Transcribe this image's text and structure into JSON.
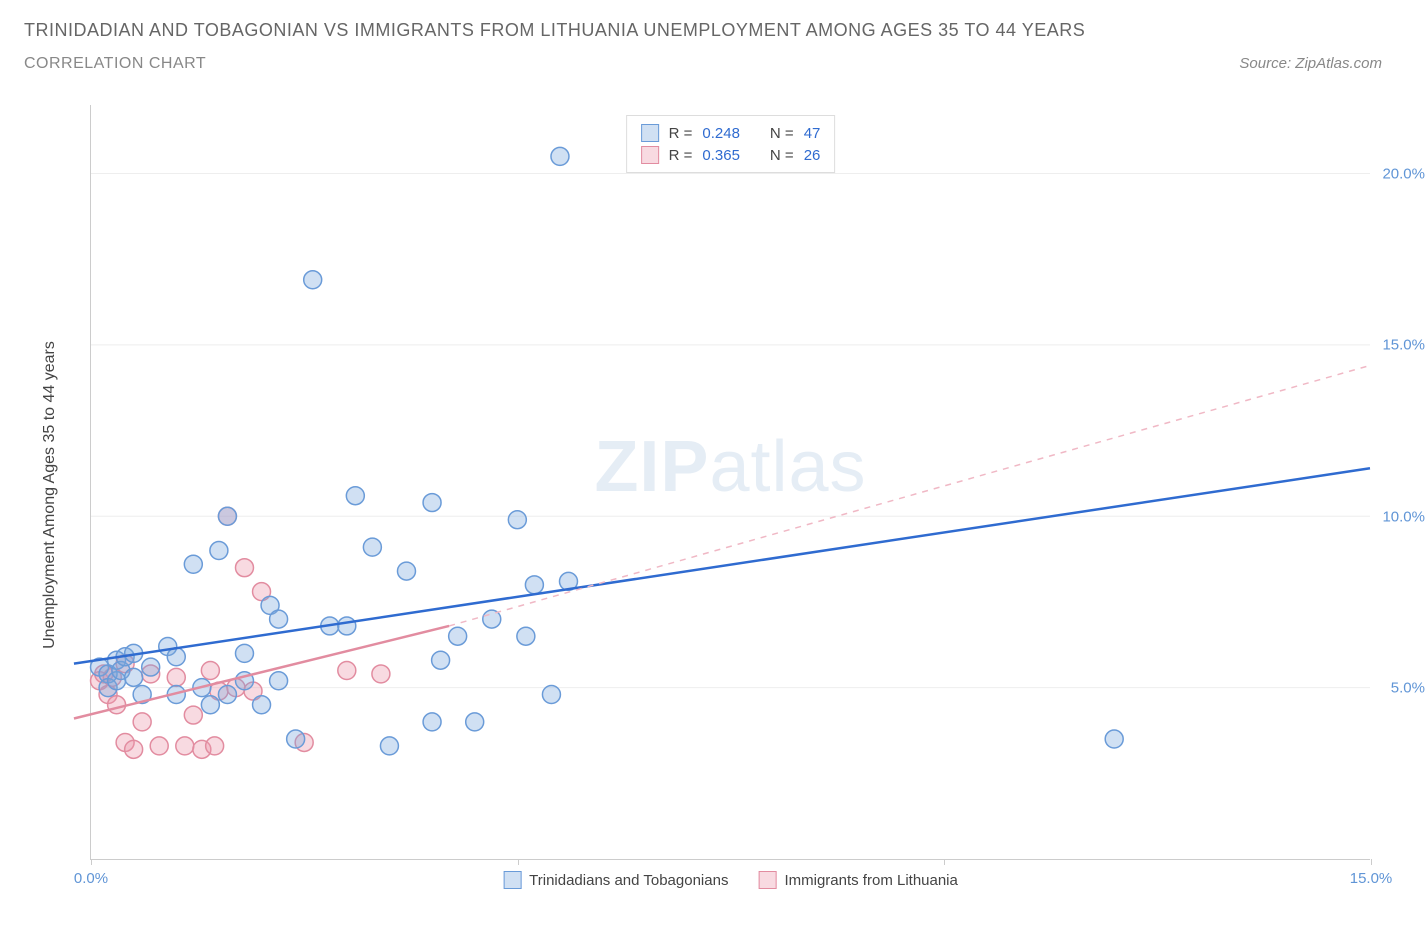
{
  "header": {
    "title": "TRINIDADIAN AND TOBAGONIAN VS IMMIGRANTS FROM LITHUANIA UNEMPLOYMENT AMONG AGES 35 TO 44 YEARS",
    "subtitle": "CORRELATION CHART",
    "source_prefix": "Source: ",
    "source_name": "ZipAtlas.com"
  },
  "chart": {
    "type": "scatter",
    "ylabel": "Unemployment Among Ages 35 to 44 years",
    "watermark_bold": "ZIP",
    "watermark_rest": "atlas",
    "xlim": [
      0,
      15
    ],
    "ylim": [
      0,
      22
    ],
    "xticks": [
      {
        "v": 0,
        "label": "0.0%"
      },
      {
        "v": 5,
        "label": ""
      },
      {
        "v": 10,
        "label": ""
      },
      {
        "v": 15,
        "label": "15.0%"
      }
    ],
    "yticks": [
      {
        "v": 5,
        "label": "5.0%"
      },
      {
        "v": 10,
        "label": "10.0%"
      },
      {
        "v": 15,
        "label": "15.0%"
      },
      {
        "v": 20,
        "label": "20.0%"
      }
    ],
    "colors": {
      "series_a_fill": "rgba(120,165,220,0.35)",
      "series_a_stroke": "#6a9bd8",
      "series_b_fill": "rgba(235,150,170,0.35)",
      "series_b_stroke": "#e28ca0",
      "trend_a": "#2f6bd0",
      "trend_b": "#e28ca0",
      "trend_b_dash": "#f0b8c5",
      "grid": "#eeeeee",
      "axis": "#cccccc",
      "tick_text": "#6095d6",
      "text": "#444444",
      "background": "#ffffff"
    },
    "marker_radius": 9,
    "marker_stroke_width": 1.5,
    "trend_width": 2.5,
    "series_a": {
      "name": "Trinidadians and Tobagonians",
      "R": "0.248",
      "N": "47",
      "points": [
        [
          0.1,
          5.6
        ],
        [
          0.2,
          5.4
        ],
        [
          0.2,
          5.0
        ],
        [
          0.3,
          5.8
        ],
        [
          0.3,
          5.2
        ],
        [
          0.35,
          5.5
        ],
        [
          0.4,
          5.9
        ],
        [
          0.5,
          5.3
        ],
        [
          0.5,
          6.0
        ],
        [
          0.6,
          4.8
        ],
        [
          0.7,
          5.6
        ],
        [
          0.9,
          6.2
        ],
        [
          1.0,
          4.8
        ],
        [
          1.0,
          5.9
        ],
        [
          1.2,
          8.6
        ],
        [
          1.3,
          5.0
        ],
        [
          1.4,
          4.5
        ],
        [
          1.5,
          9.0
        ],
        [
          1.6,
          4.8
        ],
        [
          1.6,
          10.0
        ],
        [
          1.8,
          6.0
        ],
        [
          1.8,
          5.2
        ],
        [
          2.0,
          4.5
        ],
        [
          2.1,
          7.4
        ],
        [
          2.2,
          7.0
        ],
        [
          2.2,
          5.2
        ],
        [
          2.4,
          3.5
        ],
        [
          2.6,
          16.9
        ],
        [
          2.8,
          6.8
        ],
        [
          3.0,
          6.8
        ],
        [
          3.1,
          10.6
        ],
        [
          3.3,
          9.1
        ],
        [
          3.5,
          3.3
        ],
        [
          3.7,
          8.4
        ],
        [
          4.0,
          4.0
        ],
        [
          4.0,
          10.4
        ],
        [
          4.1,
          5.8
        ],
        [
          4.3,
          6.5
        ],
        [
          4.5,
          4.0
        ],
        [
          4.7,
          7.0
        ],
        [
          5.0,
          9.9
        ],
        [
          5.1,
          6.5
        ],
        [
          5.2,
          8.0
        ],
        [
          5.4,
          4.8
        ],
        [
          5.6,
          8.1
        ],
        [
          5.5,
          20.5
        ],
        [
          12.0,
          3.5
        ]
      ],
      "trend": {
        "x1": -0.2,
        "y1": 5.7,
        "x2": 15.0,
        "y2": 11.4
      }
    },
    "series_b": {
      "name": "Immigrants from Lithuania",
      "R": "0.365",
      "N": "26",
      "points": [
        [
          0.1,
          5.2
        ],
        [
          0.15,
          5.4
        ],
        [
          0.2,
          4.8
        ],
        [
          0.25,
          5.3
        ],
        [
          0.3,
          4.5
        ],
        [
          0.4,
          5.7
        ],
        [
          0.4,
          3.4
        ],
        [
          0.5,
          3.2
        ],
        [
          0.6,
          4.0
        ],
        [
          0.7,
          5.4
        ],
        [
          0.8,
          3.3
        ],
        [
          1.0,
          5.3
        ],
        [
          1.1,
          3.3
        ],
        [
          1.2,
          4.2
        ],
        [
          1.3,
          3.2
        ],
        [
          1.4,
          5.5
        ],
        [
          1.45,
          3.3
        ],
        [
          1.5,
          4.9
        ],
        [
          1.6,
          10.0
        ],
        [
          1.7,
          5.0
        ],
        [
          1.8,
          8.5
        ],
        [
          1.9,
          4.9
        ],
        [
          2.0,
          7.8
        ],
        [
          2.5,
          3.4
        ],
        [
          3.0,
          5.5
        ],
        [
          3.4,
          5.4
        ]
      ],
      "trend_solid": {
        "x1": -0.2,
        "y1": 4.1,
        "x2": 4.2,
        "y2": 6.8
      },
      "trend_dash": {
        "x1": 4.2,
        "y1": 6.8,
        "x2": 15.0,
        "y2": 14.4
      }
    },
    "stats_legend": {
      "r_label": "R =",
      "n_label": "N ="
    },
    "swatch": {
      "a_fill": "rgba(120,165,220,0.35)",
      "a_border": "#6a9bd8",
      "b_fill": "rgba(235,150,170,0.35)",
      "b_border": "#e28ca0"
    }
  }
}
